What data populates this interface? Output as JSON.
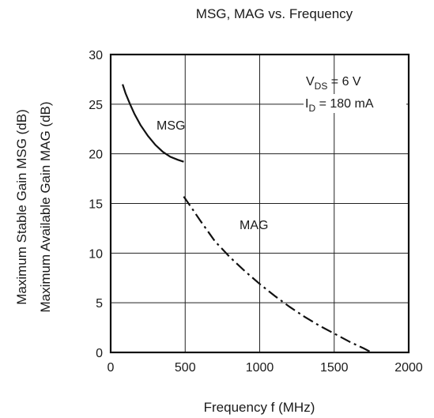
{
  "chart_data": {
    "type": "line",
    "title": "MSG, MAG vs. Frequency",
    "xlabel": "Frequency   f  (MHz)",
    "ylabel_lines": [
      "Maximum Stable Gain   MSG  (dB)",
      "Maximum Available Gain   MAG  (dB)"
    ],
    "xlim": [
      0,
      2000
    ],
    "ylim": [
      0,
      30
    ],
    "x_ticks": [
      0,
      500,
      1000,
      1500,
      2000
    ],
    "y_ticks": [
      0,
      5,
      10,
      15,
      20,
      25,
      30
    ],
    "grid": true,
    "conditions": {
      "vds": {
        "prefix": "V",
        "sub": "DS",
        "value": " = 6 V"
      },
      "id": {
        "prefix": "I",
        "sub": "D",
        "value": " = 180 mA"
      }
    },
    "series": [
      {
        "name": "MSG",
        "style": "solid",
        "x": [
          80,
          100,
          130,
          160,
          200,
          250,
          300,
          350,
          400,
          450,
          490
        ],
        "y": [
          27.0,
          26.1,
          25.0,
          24.0,
          22.9,
          21.8,
          20.9,
          20.2,
          19.7,
          19.4,
          19.2
        ]
      },
      {
        "name": "MAG",
        "style": "dashdot",
        "x": [
          490,
          550,
          600,
          700,
          800,
          900,
          1000,
          1100,
          1200,
          1300,
          1400,
          1500,
          1600,
          1700,
          1750
        ],
        "y": [
          15.7,
          14.4,
          13.3,
          11.2,
          9.6,
          8.2,
          6.9,
          5.7,
          4.6,
          3.6,
          2.7,
          1.9,
          1.1,
          0.4,
          0.0
        ]
      }
    ]
  }
}
